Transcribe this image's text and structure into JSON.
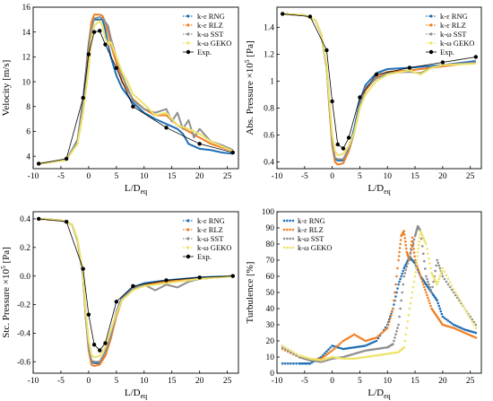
{
  "colors": {
    "k-e RNG": "#1f6fb5",
    "k-e RLZ": "#f07f24",
    "k-w SST": "#8f8f8f",
    "k-w GEKO": "#ede36a",
    "Exp.": "#000000"
  },
  "chart_data": [
    {
      "type": "line",
      "xlabel_base": "L/D",
      "xlabel_sub": "eq",
      "ylabel": "Velocity [m/s]",
      "xlim": [
        -10,
        27
      ],
      "ylim": [
        3,
        16
      ],
      "xticks": [
        -10,
        -5,
        0,
        5,
        10,
        15,
        20,
        25
      ],
      "yticks": [
        4,
        6,
        8,
        10,
        12,
        14,
        16
      ],
      "legend_position": "top-right",
      "series": [
        {
          "name": "k-ε RNG",
          "x": [
            -9,
            -4,
            -2,
            -1,
            0,
            0.5,
            1,
            2,
            2.5,
            3,
            3.5,
            4,
            5,
            6,
            8,
            10,
            12,
            14,
            16,
            17,
            18,
            20,
            22,
            24,
            26
          ],
          "y": [
            3.4,
            3.7,
            5.3,
            8.5,
            13.0,
            14.7,
            15.0,
            15.0,
            15.0,
            14.2,
            13.0,
            12.0,
            10.5,
            9.5,
            8.3,
            7.5,
            7.0,
            6.6,
            6.2,
            5.8,
            5.0,
            4.6,
            4.5,
            4.3,
            4.2
          ]
        },
        {
          "name": "k-ε RLZ",
          "x": [
            -9,
            -4,
            -2,
            -1,
            0,
            0.5,
            1,
            2,
            2.5,
            3,
            3.5,
            4,
            5,
            6,
            8,
            10,
            12,
            14,
            16,
            18,
            20,
            22,
            24,
            26
          ],
          "y": [
            3.4,
            3.7,
            5.2,
            8.2,
            12.5,
            14.8,
            15.4,
            15.4,
            15.3,
            14.8,
            14.0,
            13.0,
            11.5,
            10.0,
            8.6,
            7.8,
            7.3,
            7.3,
            6.5,
            6.0,
            5.5,
            5.0,
            4.7,
            4.4
          ]
        },
        {
          "name": "k-ω SST",
          "x": [
            -9,
            -4,
            -2,
            -1,
            0,
            0.5,
            1,
            2,
            2.5,
            3,
            3.5,
            4,
            5,
            6,
            8,
            10,
            12,
            14,
            15,
            16,
            17,
            18,
            19,
            20,
            22,
            24,
            26
          ],
          "y": [
            3.4,
            3.7,
            5.2,
            8.0,
            12.0,
            14.2,
            15.1,
            15.2,
            15.1,
            14.8,
            14.5,
            13.5,
            12.0,
            10.5,
            8.5,
            7.8,
            7.5,
            7.8,
            6.8,
            7.5,
            6.2,
            6.9,
            5.5,
            6.2,
            5.2,
            4.9,
            4.5
          ]
        },
        {
          "name": "k-ω GEKO",
          "x": [
            -9,
            -4,
            -2,
            -1,
            0,
            0.5,
            1,
            2,
            2.5,
            3,
            3.5,
            4,
            5,
            6,
            7,
            8,
            10,
            12,
            14,
            16,
            18,
            20,
            22,
            24,
            26
          ],
          "y": [
            3.4,
            3.7,
            5.0,
            7.5,
            11.0,
            13.5,
            14.5,
            14.9,
            14.5,
            13.5,
            13.0,
            13.2,
            12.0,
            10.8,
            10.0,
            9.0,
            8.2,
            7.3,
            7.5,
            6.5,
            6.2,
            5.8,
            5.2,
            4.8,
            4.4
          ]
        },
        {
          "name": "Exp.",
          "style": "points",
          "x": [
            -9,
            -4,
            -1,
            0,
            1,
            2,
            3,
            5,
            8,
            14,
            20,
            26
          ],
          "y": [
            3.4,
            3.8,
            8.7,
            12.2,
            14.0,
            14.1,
            13.0,
            11.1,
            8.0,
            6.3,
            5.0,
            4.3
          ]
        }
      ]
    },
    {
      "type": "line",
      "xlabel_base": "L/D",
      "xlabel_sub": "eq",
      "ylabel_base": "Abs. Pressure ×10",
      "ylabel_sup": "5",
      "ylabel_unit": " [Pa]",
      "xlim": [
        -10,
        27
      ],
      "ylim": [
        0.35,
        1.55
      ],
      "xticks": [
        -10,
        -5,
        0,
        5,
        10,
        15,
        20,
        25
      ],
      "yticks": [
        0.4,
        0.6,
        0.8,
        1.0,
        1.2,
        1.4
      ],
      "legend_position": "top-right",
      "series": [
        {
          "name": "k-ε RNG",
          "x": [
            -9,
            -5,
            -3,
            -2,
            -1,
            -0.5,
            0,
            0.5,
            1,
            2,
            3,
            4,
            5,
            6,
            8,
            10,
            14,
            20,
            26
          ],
          "y": [
            1.5,
            1.49,
            1.45,
            1.35,
            1.1,
            0.8,
            0.55,
            0.42,
            0.41,
            0.41,
            0.5,
            0.65,
            0.85,
            0.97,
            1.06,
            1.09,
            1.1,
            1.12,
            1.15
          ]
        },
        {
          "name": "k-ε RLZ",
          "x": [
            -9,
            -5,
            -3,
            -2,
            -1,
            -0.5,
            0,
            0.5,
            1,
            2,
            3,
            4,
            5,
            6,
            8,
            10,
            14,
            20,
            26
          ],
          "y": [
            1.5,
            1.49,
            1.45,
            1.35,
            1.1,
            0.8,
            0.52,
            0.4,
            0.38,
            0.39,
            0.48,
            0.62,
            0.8,
            0.93,
            1.03,
            1.07,
            1.08,
            1.11,
            1.14
          ]
        },
        {
          "name": "k-ω SST",
          "x": [
            -9,
            -5,
            -3,
            -2,
            -1,
            -0.5,
            0,
            0.5,
            1,
            2,
            3,
            4,
            5,
            6,
            8,
            10,
            14,
            16,
            18,
            20,
            26
          ],
          "y": [
            1.5,
            1.49,
            1.45,
            1.35,
            1.1,
            0.82,
            0.55,
            0.43,
            0.42,
            0.42,
            0.5,
            0.62,
            0.82,
            0.95,
            1.02,
            1.06,
            1.07,
            1.06,
            1.1,
            1.12,
            1.14
          ]
        },
        {
          "name": "k-ω GEKO",
          "x": [
            -9,
            -5,
            -3,
            -2,
            -1,
            -0.5,
            0,
            0.5,
            1,
            2,
            3,
            4,
            5,
            6,
            8,
            10,
            14,
            16,
            18,
            20,
            26
          ],
          "y": [
            1.5,
            1.49,
            1.45,
            1.35,
            1.12,
            0.85,
            0.6,
            0.48,
            0.45,
            0.46,
            0.52,
            0.62,
            0.8,
            0.9,
            1.0,
            1.05,
            1.08,
            1.05,
            1.1,
            1.12,
            1.13
          ]
        },
        {
          "name": "Exp.",
          "style": "points",
          "x": [
            -9,
            -4,
            -1,
            0,
            1,
            2,
            3,
            5,
            8,
            14,
            20,
            26
          ],
          "y": [
            1.5,
            1.48,
            1.23,
            0.85,
            0.53,
            0.5,
            0.58,
            0.88,
            1.05,
            1.1,
            1.14,
            1.18
          ]
        }
      ]
    },
    {
      "type": "line",
      "xlabel_base": "L/D",
      "xlabel_sub": "eq",
      "ylabel_base": "Stc. Pressure ×10",
      "ylabel_sup": "5",
      "ylabel_unit": " [Pa]",
      "xlim": [
        -10,
        27
      ],
      "ylim": [
        -0.68,
        0.45
      ],
      "xticks": [
        -10,
        -5,
        0,
        5,
        10,
        15,
        20,
        25
      ],
      "yticks": [
        -0.6,
        -0.4,
        -0.2,
        0.0,
        0.2,
        0.4
      ],
      "ytick_labels": [
        "-0.6",
        "-0.4",
        "-0.2",
        "0.0",
        "0.2",
        "0.4"
      ],
      "legend_position": "top-right",
      "series": [
        {
          "name": "k-ε RNG",
          "x": [
            -9,
            -5,
            -3,
            -2,
            -1,
            -0.5,
            0,
            0.5,
            1,
            2,
            3,
            4,
            5,
            6,
            8,
            10,
            14,
            20,
            26
          ],
          "y": [
            0.4,
            0.39,
            0.36,
            0.25,
            0.0,
            -0.3,
            -0.5,
            -0.6,
            -0.61,
            -0.61,
            -0.53,
            -0.4,
            -0.25,
            -0.15,
            -0.08,
            -0.05,
            -0.03,
            -0.01,
            0.0
          ]
        },
        {
          "name": "k-ε RLZ",
          "x": [
            -9,
            -5,
            -3,
            -2,
            -1,
            -0.5,
            0,
            0.5,
            1,
            2,
            3,
            4,
            5,
            6,
            8,
            10,
            14,
            20,
            26
          ],
          "y": [
            0.4,
            0.39,
            0.36,
            0.25,
            0.0,
            -0.3,
            -0.52,
            -0.62,
            -0.63,
            -0.62,
            -0.56,
            -0.44,
            -0.28,
            -0.17,
            -0.09,
            -0.06,
            -0.04,
            -0.02,
            0.0
          ]
        },
        {
          "name": "k-ω SST",
          "x": [
            -9,
            -5,
            -3,
            -2,
            -1,
            -0.5,
            0,
            0.5,
            1,
            2,
            3,
            4,
            5,
            6,
            8,
            10,
            12,
            14,
            16,
            18,
            20,
            26
          ],
          "y": [
            0.4,
            0.39,
            0.36,
            0.25,
            0.0,
            -0.3,
            -0.5,
            -0.59,
            -0.6,
            -0.6,
            -0.53,
            -0.42,
            -0.26,
            -0.16,
            -0.09,
            -0.06,
            -0.1,
            -0.06,
            -0.08,
            -0.04,
            -0.02,
            0.0
          ]
        },
        {
          "name": "k-ω GEKO",
          "x": [
            -9,
            -5,
            -3,
            -2,
            -1,
            -0.5,
            0,
            0.5,
            1,
            2,
            3,
            4,
            5,
            6,
            8,
            10,
            14,
            20,
            26
          ],
          "y": [
            0.4,
            0.39,
            0.36,
            0.26,
            0.02,
            -0.26,
            -0.45,
            -0.55,
            -0.57,
            -0.56,
            -0.5,
            -0.38,
            -0.26,
            -0.17,
            -0.1,
            -0.07,
            -0.05,
            -0.02,
            0.0
          ]
        },
        {
          "name": "Exp.",
          "style": "points",
          "x": [
            -9,
            -4,
            -1,
            0,
            1,
            2,
            3,
            5,
            8,
            14,
            20,
            26
          ],
          "y": [
            0.4,
            0.38,
            0.05,
            -0.27,
            -0.48,
            -0.52,
            -0.47,
            -0.18,
            -0.07,
            -0.03,
            -0.01,
            0.0
          ]
        }
      ]
    },
    {
      "type": "scatter",
      "xlabel_base": "L/D",
      "xlabel_sub": "eq",
      "ylabel": "Turbulence [%]",
      "xlim": [
        -10,
        27
      ],
      "ylim": [
        0,
        100
      ],
      "xticks": [
        -10,
        -5,
        0,
        5,
        10,
        15,
        20,
        25
      ],
      "yticks": [
        0,
        10,
        20,
        30,
        40,
        50,
        60,
        70,
        80,
        90,
        100
      ],
      "legend_position": "top-left",
      "series": [
        {
          "name": "k-ε RNG",
          "x": [
            -9,
            -6,
            -4,
            -2,
            0,
            2,
            4,
            6,
            8,
            10,
            11,
            12,
            13,
            14,
            15,
            16,
            17,
            18,
            19,
            20,
            22,
            24,
            26
          ],
          "y": [
            6,
            6,
            6,
            10,
            17,
            15,
            16,
            17,
            20,
            30,
            40,
            55,
            65,
            72,
            68,
            60,
            55,
            50,
            45,
            35,
            30,
            27,
            25
          ]
        },
        {
          "name": "k-ε RLZ",
          "x": [
            -9,
            -6,
            -4,
            -2,
            0,
            2,
            4,
            6,
            8,
            10,
            11,
            12,
            12.5,
            13,
            13.5,
            14,
            14.5,
            15,
            16,
            17,
            18,
            19,
            20,
            22,
            24,
            26
          ],
          "y": [
            15,
            10,
            8,
            9,
            14,
            20,
            24,
            20,
            22,
            28,
            40,
            70,
            85,
            88,
            75,
            70,
            84,
            70,
            60,
            50,
            40,
            35,
            30,
            28,
            25,
            22
          ]
        },
        {
          "name": "k-ω SST",
          "x": [
            -9,
            -6,
            -4,
            -2,
            0,
            2,
            4,
            6,
            8,
            10,
            11,
            12,
            13,
            14,
            15,
            15.5,
            16,
            17,
            18,
            19,
            20,
            22,
            24,
            26
          ],
          "y": [
            16,
            10,
            8,
            7,
            9,
            10,
            12,
            14,
            15,
            16,
            18,
            30,
            60,
            72,
            85,
            91,
            88,
            60,
            50,
            70,
            60,
            50,
            40,
            30
          ]
        },
        {
          "name": "k-ω GEKO",
          "x": [
            -9,
            -6,
            -4,
            -2,
            0,
            2,
            4,
            6,
            8,
            10,
            12,
            13,
            14,
            15,
            15.5,
            16,
            17,
            18,
            19,
            20,
            22,
            24,
            26
          ],
          "y": [
            17,
            11,
            9,
            8,
            10,
            9,
            9,
            10,
            11,
            12,
            13,
            16,
            40,
            60,
            75,
            88,
            80,
            62,
            55,
            65,
            52,
            40,
            28
          ]
        }
      ]
    }
  ]
}
